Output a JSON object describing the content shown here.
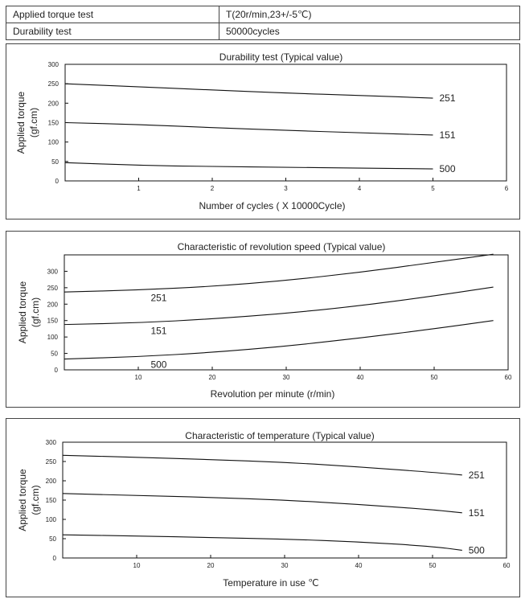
{
  "spec": {
    "rows": [
      {
        "label": "Applied torque test",
        "value": "T(20r/min,23+/-5℃)"
      },
      {
        "label": "Durability test",
        "value": "50000cycles"
      }
    ]
  },
  "chart_data": [
    {
      "type": "line",
      "title": "Durability test (Typical value)",
      "xlabel": "Number of cycles ( X 10000Cycle)",
      "ylabel": "Applied torque",
      "ylabel_unit": "(gf.cm)",
      "xlim": [
        0,
        6
      ],
      "ylim": [
        0,
        300
      ],
      "xticks": [
        1,
        2,
        3,
        4,
        5,
        6
      ],
      "yticks": [
        0,
        50,
        100,
        150,
        200,
        250,
        300
      ],
      "grid": false,
      "label_position": "end",
      "series": [
        {
          "name": "251",
          "x": [
            0,
            1,
            2,
            3,
            4,
            5
          ],
          "y": [
            250,
            242,
            234,
            226,
            220,
            213
          ]
        },
        {
          "name": "151",
          "x": [
            0,
            1,
            2,
            3,
            4,
            5
          ],
          "y": [
            150,
            145,
            137,
            130,
            124,
            118
          ]
        },
        {
          "name": "500",
          "x": [
            0,
            1,
            2,
            3,
            4,
            5
          ],
          "y": [
            47,
            40,
            37,
            35,
            33,
            31
          ]
        }
      ]
    },
    {
      "type": "line",
      "title": "Characteristic of revolution speed (Typical value)",
      "xlabel": "Revolution per minute (r/min)",
      "ylabel": "Applied torque",
      "ylabel_unit": "(gf.cm)",
      "xlim": [
        0,
        60
      ],
      "ylim": [
        0,
        350
      ],
      "xticks": [
        10,
        20,
        30,
        40,
        50,
        60
      ],
      "yticks": [
        0,
        50,
        100,
        150,
        200,
        250,
        300
      ],
      "grid": false,
      "label_position": "below-curve",
      "series": [
        {
          "name": "251",
          "x": [
            0,
            10,
            20,
            30,
            40,
            50,
            58
          ],
          "y": [
            237,
            243,
            254,
            272,
            297,
            327,
            352
          ]
        },
        {
          "name": "151",
          "x": [
            0,
            10,
            20,
            30,
            40,
            50,
            58
          ],
          "y": [
            138,
            143,
            155,
            172,
            195,
            225,
            252
          ]
        },
        {
          "name": "500",
          "x": [
            0,
            10,
            20,
            30,
            40,
            50,
            58
          ],
          "y": [
            33,
            40,
            53,
            72,
            97,
            125,
            150
          ]
        }
      ]
    },
    {
      "type": "line",
      "title": "Characteristic of temperature (Typical value)",
      "xlabel": "Temperature in use ℃",
      "ylabel": "Applied torque",
      "ylabel_unit": "(gf.cm)",
      "xlim": [
        0,
        60
      ],
      "ylim": [
        0,
        300
      ],
      "xticks": [
        10,
        20,
        30,
        40,
        50,
        60
      ],
      "yticks": [
        0,
        50,
        100,
        150,
        200,
        250,
        300
      ],
      "grid": false,
      "label_position": "end",
      "series": [
        {
          "name": "251",
          "x": [
            0,
            10,
            20,
            30,
            40,
            50,
            54
          ],
          "y": [
            266,
            261,
            255,
            248,
            236,
            222,
            215
          ]
        },
        {
          "name": "151",
          "x": [
            0,
            10,
            20,
            30,
            40,
            50,
            54
          ],
          "y": [
            167,
            162,
            157,
            150,
            139,
            125,
            117
          ]
        },
        {
          "name": "500",
          "x": [
            0,
            10,
            20,
            30,
            40,
            50,
            54
          ],
          "y": [
            60,
            57,
            53,
            49,
            42,
            30,
            20
          ]
        }
      ]
    }
  ]
}
